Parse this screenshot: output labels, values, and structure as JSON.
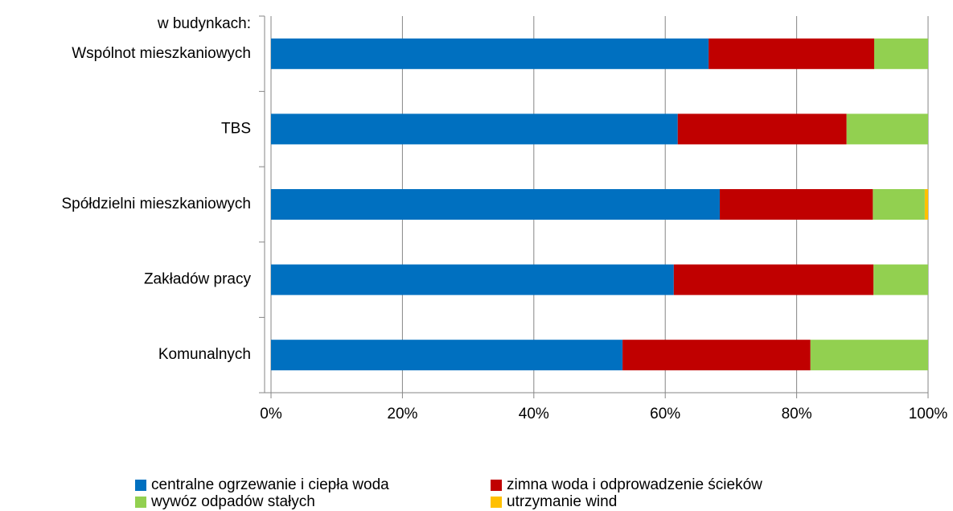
{
  "chart_data": {
    "type": "stacked_barh",
    "annotation": "w budynkach:",
    "categories": [
      "Wspólnot mieszkaniowych",
      "TBS",
      "Spółdzielni mieszkaniowych",
      "Zakładów pracy",
      "Komunalnych"
    ],
    "series": [
      {
        "name": "centralne ogrzewanie i ciepła woda",
        "color": "#0070c0",
        "values": [
          66.6,
          61.9,
          68.3,
          61.3,
          53.5
        ]
      },
      {
        "name": "zimna woda i odprowadzenie ścieków",
        "color": "#c00000",
        "values": [
          25.2,
          25.7,
          23.3,
          30.4,
          28.6
        ]
      },
      {
        "name": "wywóz odpadów stałych",
        "color": "#92d050",
        "values": [
          8.2,
          12.4,
          7.9,
          8.3,
          17.9
        ]
      },
      {
        "name": "utrzymanie wind",
        "color": "#ffc000",
        "values": [
          0,
          0,
          0.5,
          0,
          0
        ]
      }
    ],
    "xlim": [
      0,
      100
    ],
    "xticks": [
      {
        "value": 0,
        "label": "0%"
      },
      {
        "value": 20,
        "label": "20%"
      },
      {
        "value": 40,
        "label": "40%"
      },
      {
        "value": 60,
        "label": "60%"
      },
      {
        "value": 80,
        "label": "80%"
      },
      {
        "value": 100,
        "label": "100%"
      }
    ],
    "grid": true,
    "legend": "bottom"
  }
}
